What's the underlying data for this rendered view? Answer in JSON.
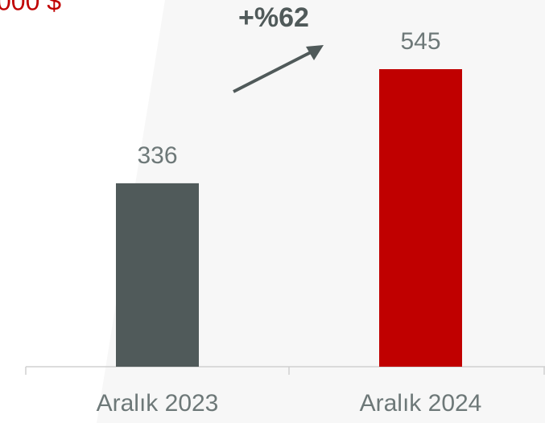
{
  "chart_data": {
    "type": "bar",
    "title": "000 $",
    "annotation": "+%62",
    "categories": [
      "Aralık 2023",
      "Aralık 2024"
    ],
    "values": [
      336,
      545
    ],
    "colors": [
      "#505a5a",
      "#c00000"
    ]
  }
}
